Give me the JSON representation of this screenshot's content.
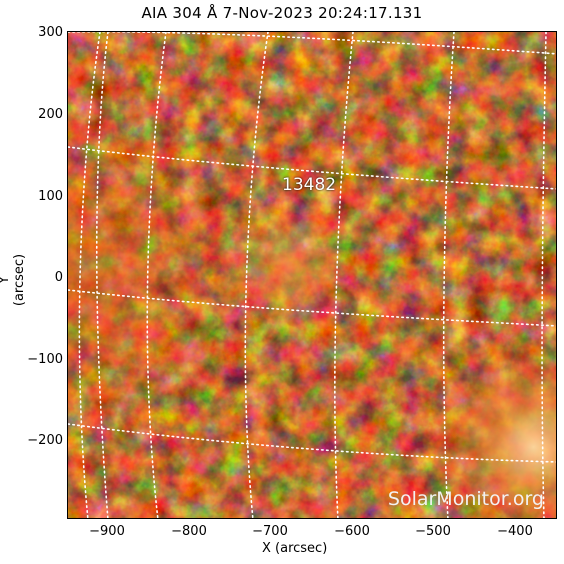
{
  "header": {
    "title": "AIA 304 Å   7-Nov-2023 20:24:17.131"
  },
  "axes": {
    "y_title": "Y (arcsec)",
    "x_title": "X (arcsec)",
    "y_ticks": [
      "300",
      "200",
      "100",
      "0",
      "−100",
      "−200"
    ],
    "x_ticks": [
      "−900",
      "−800",
      "−700",
      "−600",
      "−500",
      "−400"
    ],
    "x_range": [
      -950,
      -355
    ],
    "y_range": [
      -295,
      300
    ]
  },
  "image": {
    "active_region_label": "13482",
    "watermark": "SolarMonitor.org",
    "colors": {
      "dark": "#2a0501",
      "mid": "#a8300a",
      "bright": "#f08a32",
      "hot": "#ffe2b0",
      "grid": "#ffffff"
    }
  }
}
